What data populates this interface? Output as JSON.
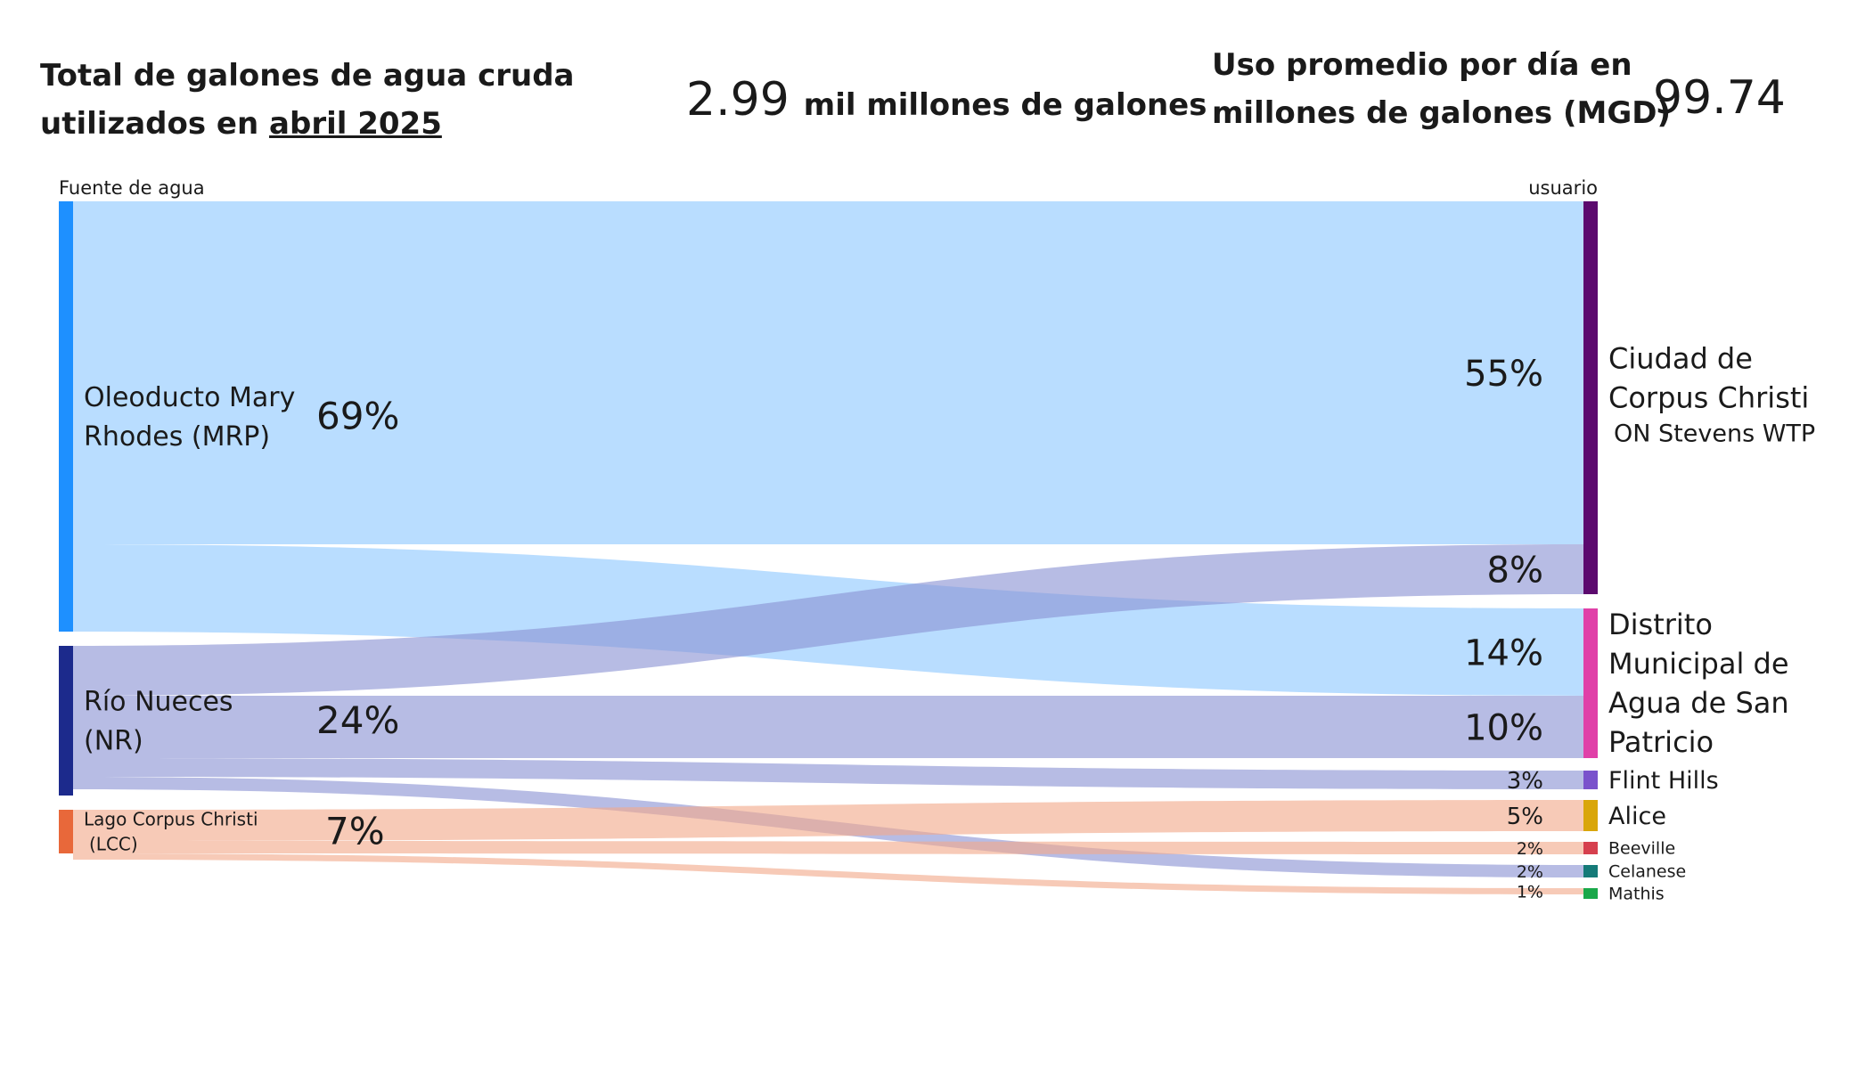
{
  "header": {
    "left_line1": "Total de galones de agua cruda",
    "left_line2_prefix": "utilizados en ",
    "left_line2_period": "abril 2025",
    "total_value": "2.99",
    "total_unit": "mil millones de galones",
    "right_line1": "Uso promedio por día en",
    "right_line2": "millones de galones (MGD)",
    "mgd_value": "99.74"
  },
  "chart_data": {
    "type": "sankey",
    "column_labels": {
      "source": "Fuente de agua",
      "target": "usuario"
    },
    "sources": [
      {
        "id": "MRP",
        "label_lines": [
          "Oleoducto Mary",
          "Rhodes (MRP)"
        ],
        "value": 69,
        "value_label": "69%",
        "color": "#1e90ff",
        "link_color": "#8ec8ff"
      },
      {
        "id": "NR",
        "label_lines": [
          "Río Nueces",
          "(NR)"
        ],
        "value": 24,
        "value_label": "24%",
        "color": "#1c2a8c",
        "link_color": "#8a93d4"
      },
      {
        "id": "LCC",
        "label_lines": [
          "Lago Corpus Christi",
          "(LCC)"
        ],
        "value": 7,
        "value_label": "7%",
        "color": "#e8683a",
        "link_color": "#f2a98a"
      }
    ],
    "targets": [
      {
        "id": "CC",
        "label_lines": [
          "Ciudad de",
          "Corpus Christi"
        ],
        "sublabel": "ON Stevens WTP",
        "value": 63,
        "color": "#5c0a6e"
      },
      {
        "id": "SP",
        "label_lines": [
          "Distrito",
          "Municipal de",
          "Agua de San",
          "Patricio"
        ],
        "value": 24,
        "color": "#e040a8"
      },
      {
        "id": "FH",
        "label_lines": [
          "Flint Hills"
        ],
        "value": 3,
        "color": "#7a52cc"
      },
      {
        "id": "AL",
        "label_lines": [
          "Alice"
        ],
        "value": 5,
        "color": "#d9a60a"
      },
      {
        "id": "BE",
        "label_lines": [
          "Beeville"
        ],
        "value": 2,
        "color": "#d6404e"
      },
      {
        "id": "CE",
        "label_lines": [
          "Celanese"
        ],
        "value": 2,
        "color": "#157a78"
      },
      {
        "id": "MA",
        "label_lines": [
          "Mathis"
        ],
        "value": 1,
        "color": "#1aa84a"
      }
    ],
    "flows": [
      {
        "source": "MRP",
        "target": "CC",
        "value": 55,
        "label": "55%"
      },
      {
        "source": "MRP",
        "target": "SP",
        "value": 14,
        "label": "14%"
      },
      {
        "source": "NR",
        "target": "CC",
        "value": 8,
        "label": "8%"
      },
      {
        "source": "NR",
        "target": "SP",
        "value": 10,
        "label": "10%"
      },
      {
        "source": "NR",
        "target": "FH",
        "value": 3,
        "label": "3%"
      },
      {
        "source": "NR",
        "target": "CE",
        "value": 2,
        "label": "2%"
      },
      {
        "source": "LCC",
        "target": "AL",
        "value": 5,
        "label": "5%"
      },
      {
        "source": "LCC",
        "target": "BE",
        "value": 2,
        "label": "2%"
      },
      {
        "source": "LCC",
        "target": "MA",
        "value": 1,
        "label": "1%"
      }
    ]
  }
}
